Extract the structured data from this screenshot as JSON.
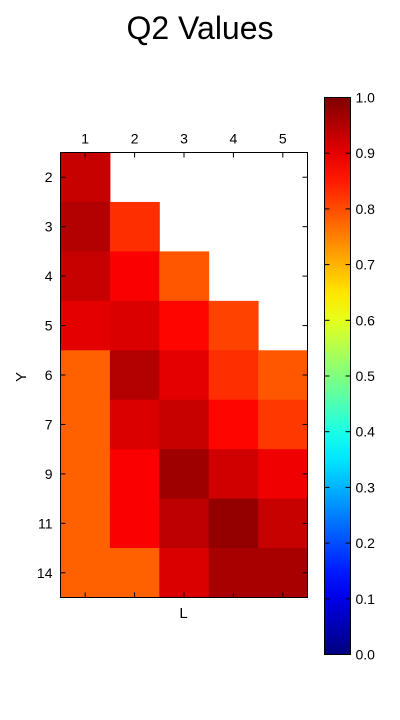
{
  "chart_data": {
    "type": "heatmap",
    "title": "Q2 Values",
    "xlabel": "L",
    "ylabel": "Y",
    "x_categories": [
      "1",
      "2",
      "3",
      "4",
      "5"
    ],
    "y_categories": [
      "2",
      "3",
      "4",
      "5",
      "6",
      "7",
      "9",
      "11",
      "14"
    ],
    "values": [
      [
        0.93,
        null,
        null,
        null,
        null
      ],
      [
        0.95,
        0.83,
        null,
        null,
        null
      ],
      [
        0.93,
        0.88,
        0.79,
        null,
        null
      ],
      [
        0.9,
        0.91,
        0.87,
        0.81,
        null
      ],
      [
        0.78,
        0.95,
        0.9,
        0.83,
        0.79
      ],
      [
        0.78,
        0.91,
        0.93,
        0.87,
        0.82
      ],
      [
        0.78,
        0.88,
        0.97,
        0.92,
        0.89
      ],
      [
        0.78,
        0.88,
        0.94,
        0.98,
        0.93
      ],
      [
        0.78,
        0.78,
        0.91,
        0.96,
        0.96
      ]
    ],
    "colorbar": {
      "colormap": "jet",
      "range": [
        0.0,
        1.0
      ],
      "ticks": [
        "0.0",
        "0.1",
        "0.2",
        "0.3",
        "0.4",
        "0.5",
        "0.6",
        "0.7",
        "0.8",
        "0.9",
        "1.0"
      ]
    },
    "x_tick_position": "top",
    "grid": false
  }
}
